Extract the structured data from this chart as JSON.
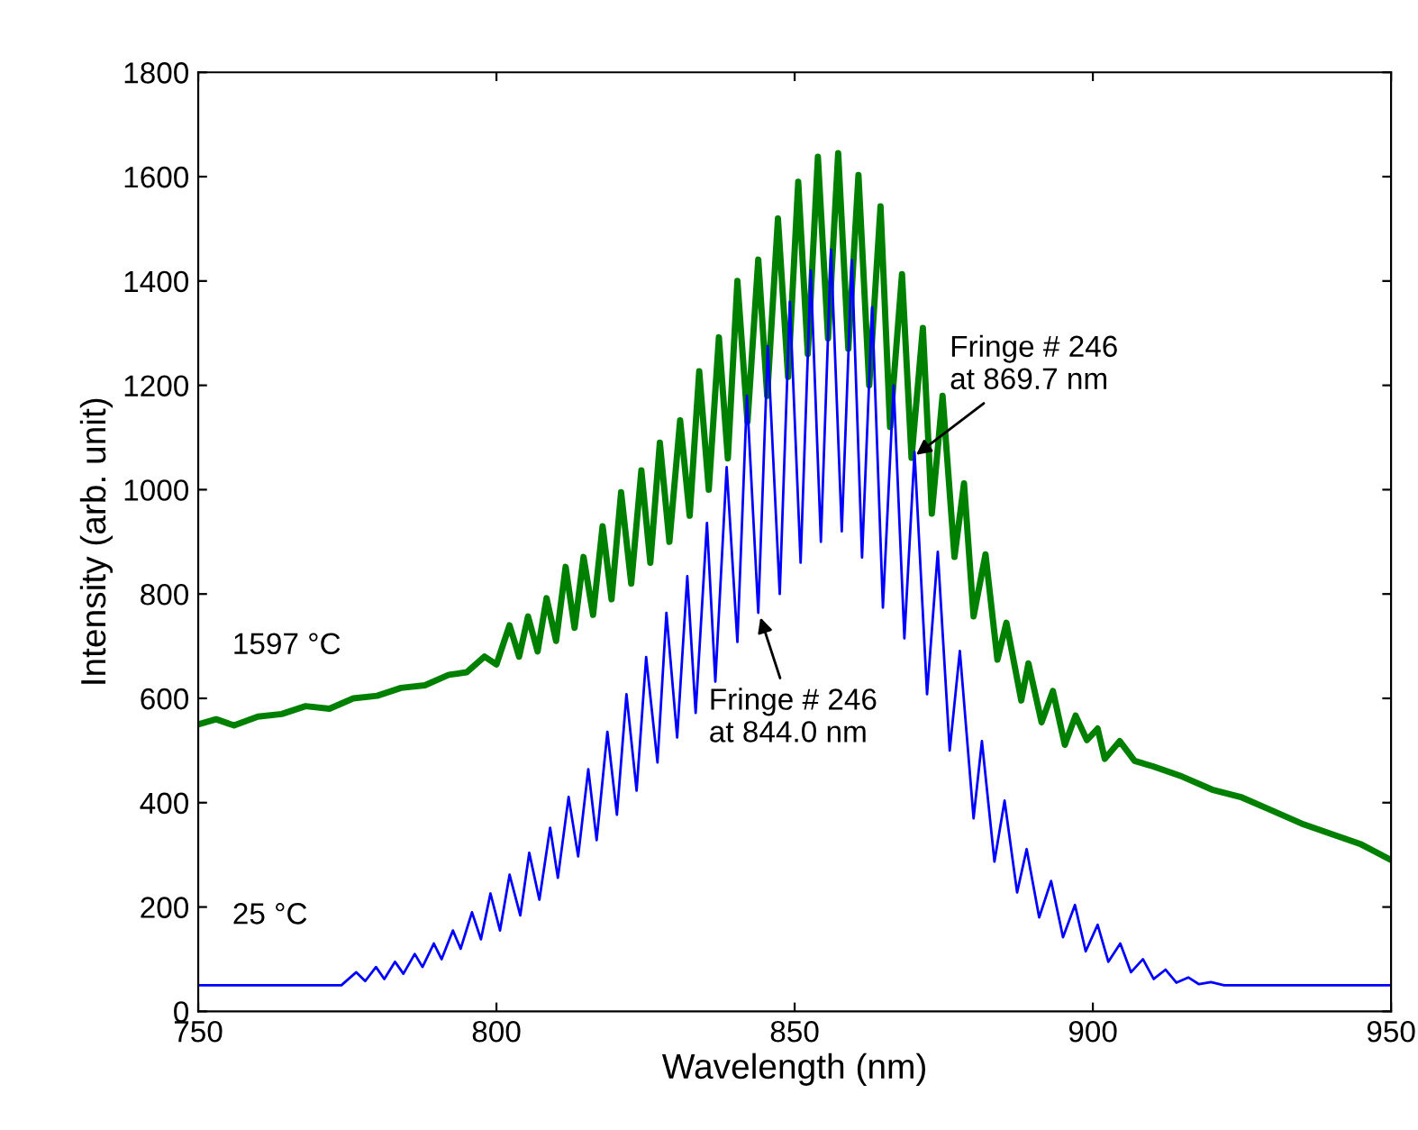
{
  "chart_data": {
    "type": "line",
    "xlabel": "Wavelength (nm)",
    "ylabel": "Intensity (arb. unit)",
    "xlim": [
      750,
      950
    ],
    "xticks": [
      750,
      800,
      850,
      900,
      950
    ],
    "ylim": [
      0,
      1800
    ],
    "yticks": [
      0,
      200,
      400,
      600,
      800,
      1000,
      1200,
      1400,
      1600,
      1800
    ],
    "grid": false,
    "legend": false,
    "series": [
      {
        "name": "1597 °C",
        "color": "#008000",
        "x": [
          750,
          753,
          756,
          760,
          764,
          768,
          772,
          776,
          780,
          784,
          788,
          792,
          795,
          798,
          800,
          802.2,
          803.8,
          805.3,
          806.9,
          808.4,
          810,
          811.6,
          813.1,
          814.6,
          816.2,
          817.8,
          819.3,
          820.9,
          822.6,
          824.3,
          825.8,
          827.4,
          829,
          830.8,
          832.4,
          834,
          835.6,
          837.3,
          838.8,
          840.4,
          842.1,
          843.9,
          845.4,
          847.2,
          848.9,
          850.6,
          852.2,
          853.9,
          855.6,
          857.3,
          859,
          860.7,
          862.5,
          864.4,
          866,
          868,
          869.6,
          871.5,
          873,
          874.8,
          876.8,
          878.4,
          880,
          882,
          884,
          885.5,
          888,
          889.2,
          891.4,
          893.3,
          895.3,
          897.1,
          899,
          900.8,
          902,
          904.5,
          907,
          910,
          915,
          920,
          925,
          930,
          935,
          940,
          945,
          950
        ],
        "values": [
          550,
          560,
          548,
          565,
          570,
          585,
          580,
          600,
          605,
          620,
          625,
          645,
          650,
          680,
          665,
          740,
          680,
          757,
          690,
          792,
          710,
          852,
          735,
          871,
          760,
          930,
          790,
          995,
          820,
          1037,
          860,
          1090,
          900,
          1133,
          950,
          1227,
          1000,
          1292,
          1060,
          1400,
          1130,
          1441,
          1180,
          1520,
          1216,
          1590,
          1260,
          1638,
          1290,
          1645,
          1270,
          1603,
          1200,
          1543,
          1120,
          1413,
          1061,
          1310,
          954,
          1180,
          871,
          1012,
          757,
          876,
          674,
          745,
          596,
          667,
          554,
          614,
          511,
          567,
          520,
          542,
          484,
          518,
          480,
          470,
          450,
          425,
          410,
          385,
          360,
          340,
          320,
          290
        ]
      },
      {
        "name": "25 °C",
        "color": "#0000ff",
        "x": [
          750,
          774,
          776.5,
          778,
          779.8,
          781.2,
          783,
          784.4,
          786.3,
          787.6,
          789.5,
          790.8,
          792.7,
          794,
          795.9,
          797.4,
          799,
          800.6,
          802.2,
          804,
          805.5,
          807.2,
          809,
          810.3,
          812.1,
          813.7,
          815.4,
          816.8,
          818.6,
          820.2,
          821.8,
          823.5,
          825.1,
          827,
          828.5,
          830.3,
          832,
          833.4,
          835.3,
          836.7,
          838.6,
          840.4,
          842,
          843.9,
          845.5,
          847.5,
          849.2,
          851,
          852.7,
          854.4,
          856.1,
          857.9,
          859.6,
          861.3,
          863,
          864.8,
          866.6,
          868.4,
          870.1,
          872.2,
          874,
          876,
          877.7,
          880,
          881.4,
          883.5,
          885.2,
          887.3,
          888.9,
          891,
          893,
          895,
          897,
          898.8,
          900.8,
          902.6,
          904.6,
          906.4,
          908.4,
          910.2,
          912.2,
          914,
          916,
          917.8,
          919.8,
          922,
          950
        ],
        "values": [
          50,
          50,
          75,
          58,
          85,
          62,
          95,
          72,
          110,
          85,
          130,
          100,
          155,
          120,
          190,
          138,
          226,
          155,
          262,
          184,
          304,
          214,
          352,
          256,
          411,
          297,
          464,
          328,
          536,
          377,
          608,
          423,
          679,
          477,
          764,
          525,
          834,
          572,
          936,
          632,
          1043,
          708,
          1180,
          764,
          1275,
          800,
          1360,
          860,
          1420,
          900,
          1460,
          920,
          1440,
          870,
          1350,
          774,
          1200,
          715,
          1072,
          608,
          881,
          500,
          691,
          370,
          518,
          287,
          404,
          228,
          311,
          180,
          250,
          142,
          204,
          115,
          166,
          95,
          130,
          75,
          100,
          62,
          80,
          55,
          65,
          52,
          56,
          50,
          50
        ]
      }
    ],
    "annotations": [
      {
        "text": "Fringe # 246\nat 844.0 nm",
        "x": 844.0,
        "y": 764
      },
      {
        "text": "Fringe # 246\nat 869.7 nm",
        "x": 869.7,
        "y": 1061
      }
    ]
  }
}
